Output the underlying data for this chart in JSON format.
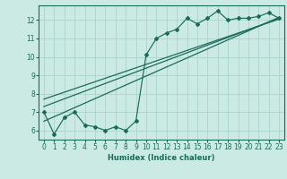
{
  "xlabel": "Humidex (Indice chaleur)",
  "bg_color": "#cceae4",
  "grid_color": "#aad4cc",
  "line_color": "#1a6b5a",
  "xlim": [
    -0.5,
    23.5
  ],
  "ylim": [
    5.5,
    12.8
  ],
  "xticks": [
    0,
    1,
    2,
    3,
    4,
    5,
    6,
    7,
    8,
    9,
    10,
    11,
    12,
    13,
    14,
    15,
    16,
    17,
    18,
    19,
    20,
    21,
    22,
    23
  ],
  "yticks": [
    6,
    7,
    8,
    9,
    10,
    11,
    12
  ],
  "main_x": [
    0,
    1,
    2,
    3,
    4,
    5,
    6,
    7,
    8,
    9,
    10,
    11,
    12,
    13,
    14,
    15,
    16,
    17,
    18,
    19,
    20,
    21,
    22,
    23
  ],
  "main_y": [
    7.0,
    5.8,
    6.7,
    7.0,
    6.3,
    6.2,
    6.0,
    6.2,
    6.0,
    6.5,
    10.1,
    11.0,
    11.3,
    11.5,
    12.1,
    11.8,
    12.1,
    12.5,
    12.0,
    12.1,
    12.1,
    12.2,
    12.4,
    12.1
  ],
  "line1_x": [
    0,
    23
  ],
  "line1_y": [
    7.3,
    12.1
  ],
  "line2_x": [
    0,
    23
  ],
  "line2_y": [
    7.7,
    12.05
  ],
  "line3_x": [
    0,
    23
  ],
  "line3_y": [
    6.5,
    12.15
  ],
  "label_fontsize": 5.5,
  "xlabel_fontsize": 6.0
}
